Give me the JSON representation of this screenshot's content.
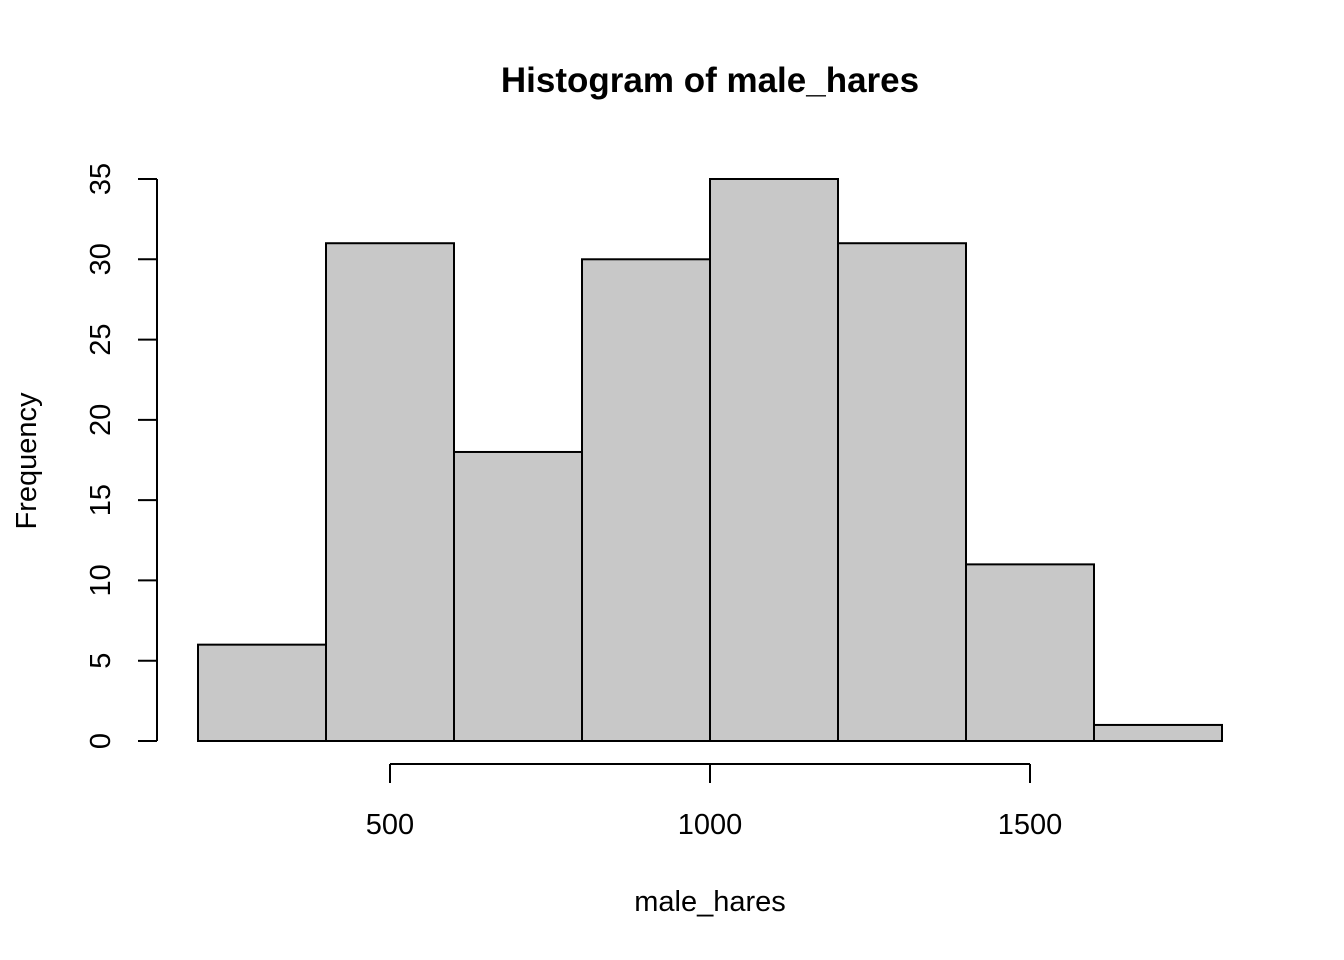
{
  "chart_data": {
    "type": "bar",
    "title": "Histogram of male_hares",
    "xlabel": "male_hares",
    "ylabel": "Frequency",
    "bins": [
      {
        "start": 200,
        "end": 400,
        "count": 6
      },
      {
        "start": 400,
        "end": 600,
        "count": 31
      },
      {
        "start": 600,
        "end": 800,
        "count": 18
      },
      {
        "start": 800,
        "end": 1000,
        "count": 30
      },
      {
        "start": 1000,
        "end": 1200,
        "count": 35
      },
      {
        "start": 1200,
        "end": 1400,
        "count": 31
      },
      {
        "start": 1400,
        "end": 1600,
        "count": 11
      },
      {
        "start": 1600,
        "end": 1800,
        "count": 1
      }
    ],
    "xticks": [
      500,
      1000,
      1500
    ],
    "yticks": [
      0,
      5,
      10,
      15,
      20,
      25,
      30,
      35
    ],
    "xlim": [
      200,
      1800
    ],
    "ylim": [
      0,
      35
    ],
    "bar_color": "#c8c8c8",
    "grid": false
  }
}
